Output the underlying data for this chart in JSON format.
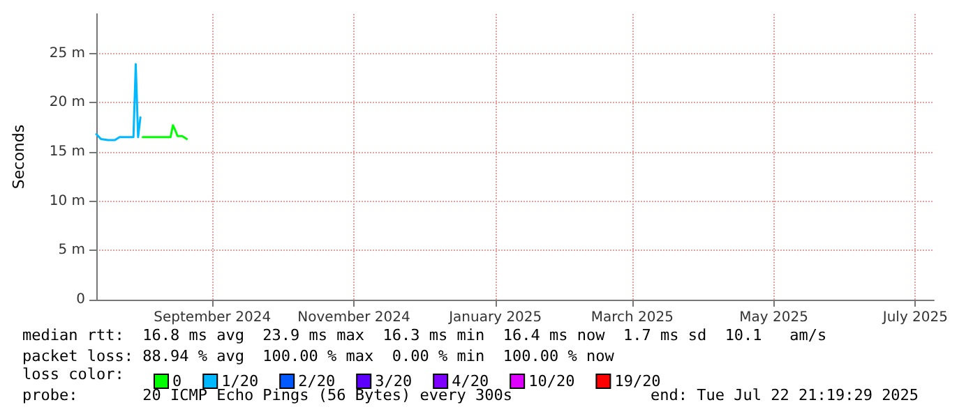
{
  "chart_data": {
    "type": "line",
    "ylabel": "Seconds",
    "legend_title": "loss color:",
    "x": [
      "2024-07-13",
      "2024-07-15",
      "2024-07-18",
      "2024-07-21",
      "2024-07-23",
      "2024-07-27",
      "2024-07-29",
      "2024-07-30",
      "2024-07-31",
      "2024-08-01",
      "2024-08-02",
      "2024-08-04",
      "2024-08-10",
      "2024-08-14",
      "2024-08-15",
      "2024-08-16",
      "2024-08-17",
      "2024-08-19",
      "2024-08-21"
    ],
    "xlim": [
      "2024-07-13",
      "2025-07-09"
    ],
    "xticks": [
      {
        "value": "2024-09-01",
        "label": "September 2024"
      },
      {
        "value": "2024-11-01",
        "label": "November 2024"
      },
      {
        "value": "2025-01-01",
        "label": "January 2025"
      },
      {
        "value": "2025-03-01",
        "label": "March 2025"
      },
      {
        "value": "2025-05-01",
        "label": "May 2025"
      },
      {
        "value": "2025-07-01",
        "label": "July 2025"
      }
    ],
    "ylim": [
      0,
      29
    ],
    "yticks": [
      {
        "value": 0,
        "label": "0"
      },
      {
        "value": 5,
        "label": "5 m"
      },
      {
        "value": 10,
        "label": "10 m"
      },
      {
        "value": 15,
        "label": "15 m"
      },
      {
        "value": 20,
        "label": "20 m"
      },
      {
        "value": 25,
        "label": "25 m"
      }
    ],
    "grid": true,
    "legend": "bottom left",
    "marker": "none",
    "line_style": "solid",
    "series": [
      {
        "name": "0",
        "color": "#00ff00",
        "values": [
          null,
          null,
          null,
          null,
          null,
          null,
          null,
          null,
          null,
          null,
          16.5,
          16.5,
          16.5,
          16.5,
          17.7,
          17.2,
          16.6,
          16.6,
          16.3
        ]
      },
      {
        "name": "1/20",
        "color": "#00b8ff",
        "values": [
          16.8,
          16.3,
          16.2,
          16.2,
          16.5,
          16.5,
          16.5,
          23.9,
          16.5,
          18.5,
          null,
          null,
          null,
          null,
          null,
          null,
          null,
          null,
          null
        ]
      },
      {
        "name": "2/20",
        "color": "#0059ff",
        "values": [
          null,
          null,
          null,
          null,
          null,
          null,
          null,
          null,
          null,
          null,
          null,
          null,
          null,
          null,
          null,
          null,
          null,
          null,
          null
        ]
      },
      {
        "name": "3/20",
        "color": "#5e00ff",
        "values": [
          null,
          null,
          null,
          null,
          null,
          null,
          null,
          null,
          null,
          null,
          null,
          null,
          null,
          null,
          null,
          null,
          null,
          null,
          null
        ]
      },
      {
        "name": "4/20",
        "color": "#7e00ff",
        "values": [
          null,
          null,
          null,
          null,
          null,
          null,
          null,
          null,
          null,
          null,
          null,
          null,
          null,
          null,
          null,
          null,
          null,
          null,
          null
        ]
      },
      {
        "name": "10/20",
        "color": "#dd00ff",
        "values": [
          null,
          null,
          null,
          null,
          null,
          null,
          null,
          null,
          null,
          null,
          null,
          null,
          null,
          null,
          null,
          null,
          null,
          null,
          null
        ]
      },
      {
        "name": "19/20",
        "color": "#ff0000",
        "values": [
          null,
          null,
          null,
          null,
          null,
          null,
          null,
          null,
          null,
          null,
          null,
          null,
          null,
          null,
          null,
          null,
          null,
          null,
          null
        ]
      }
    ],
    "annotations": [
      "median rtt:  16.8 ms avg  23.9 ms max  16.3 ms min  16.4 ms now  1.7 ms sd  10.1   am/s",
      "packet loss: 88.94 % avg  100.00 % max  0.00 % min  100.00 % now",
      "probe:       20 ICMP Echo Pings (56 Bytes) every 300s",
      "end: Tue Jul 22 21:19:29 2025"
    ]
  }
}
